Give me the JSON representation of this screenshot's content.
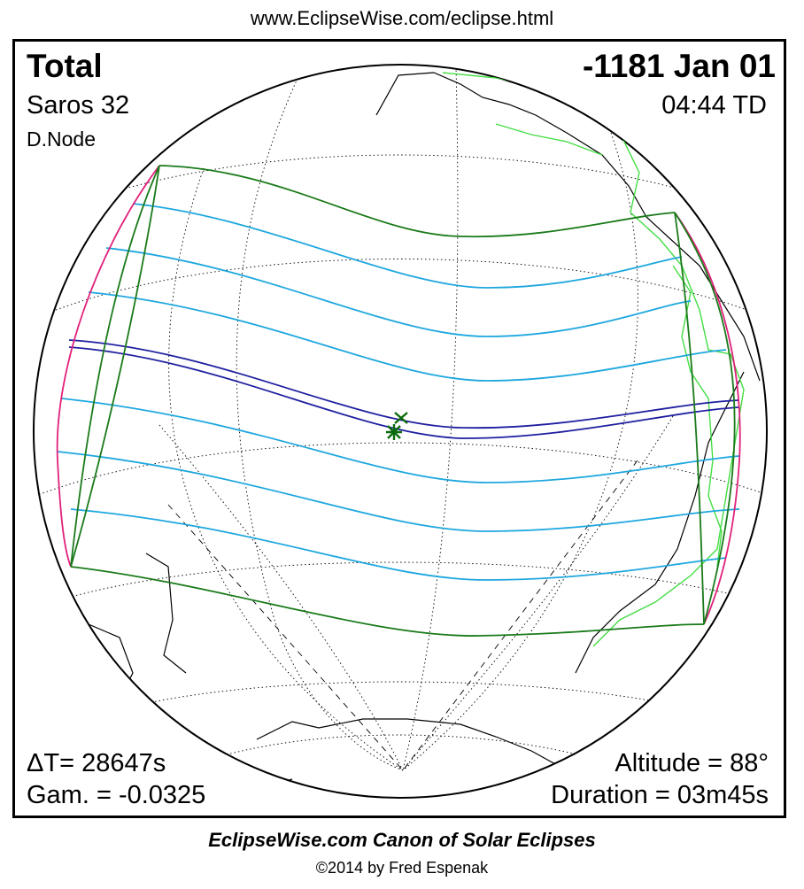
{
  "header": {
    "url": "www.EclipseWise.com/eclipse.html"
  },
  "eclipse": {
    "type": "Total",
    "date": "-1181 Jan 01",
    "saros": "Saros  32",
    "time": "04:44 TD",
    "node": "D.Node",
    "delta_t": "ΔT=  28647s",
    "gamma": "Gam. = -0.0325",
    "altitude": "Altitude = 88°",
    "duration": "Duration = 03m45s"
  },
  "footer": {
    "title": "EclipseWise.com Canon of Solar Eclipses",
    "copyright": "©2014 by Fred Espenak"
  },
  "colors": {
    "penumbra_limits": "#1a7a1a",
    "partial_lines": "#1ea7df",
    "central_path": "#1f1fa0",
    "sunrise_sunset": "#e0207a",
    "coastline_modern": "#44dd44",
    "greatest_eclipse_marker": "#0c6b0c"
  }
}
